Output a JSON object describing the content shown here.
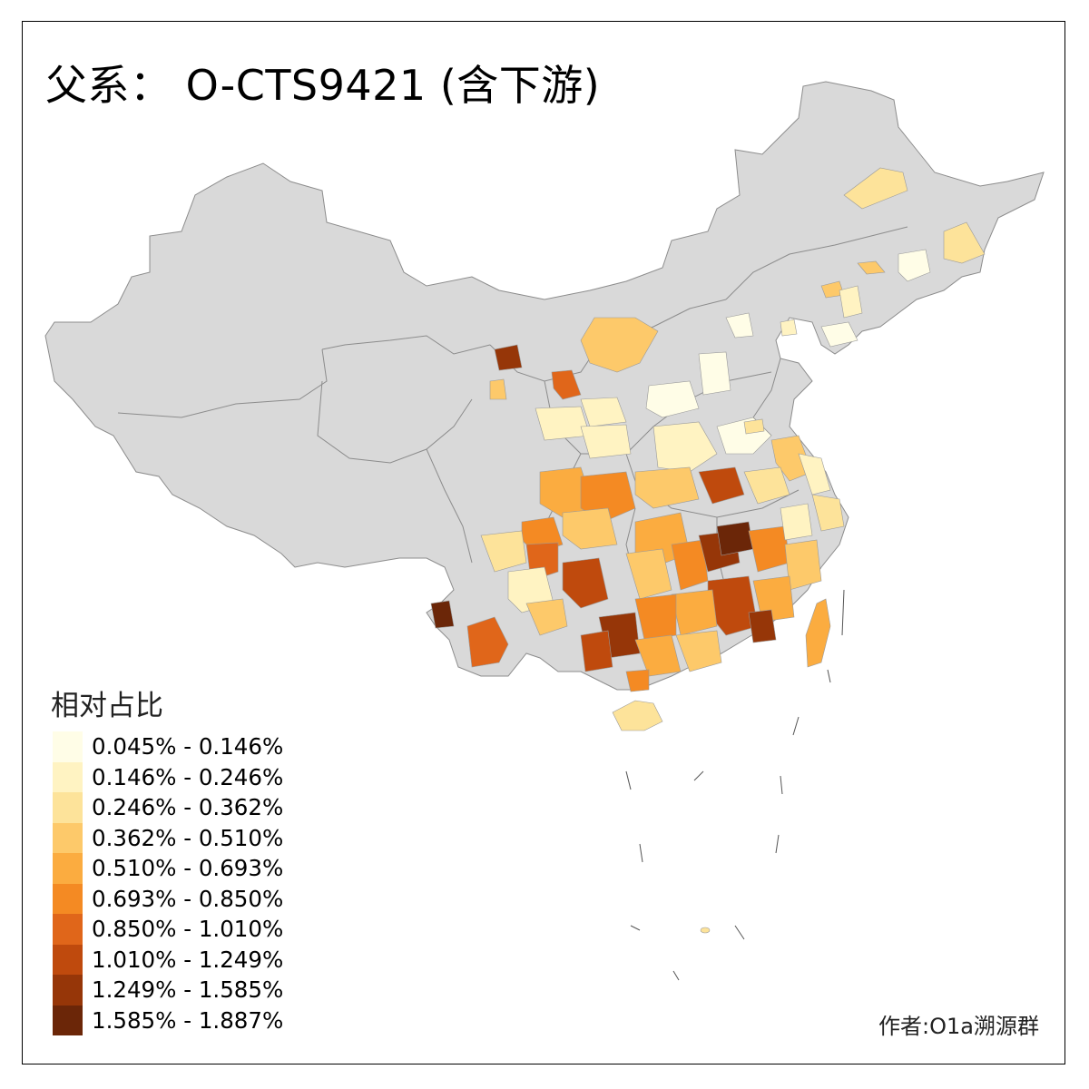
{
  "title": "父系： O-CTS9421 (含下游)",
  "legend": {
    "title": "相对占比",
    "items": [
      {
        "label": "0.045% - 0.146%",
        "color": "#fffde7"
      },
      {
        "label": "0.146% - 0.246%",
        "color": "#fff3c2"
      },
      {
        "label": "0.246% - 0.362%",
        "color": "#fde39a"
      },
      {
        "label": "0.362% - 0.510%",
        "color": "#fdc96a"
      },
      {
        "label": "0.510% - 0.693%",
        "color": "#fbac40"
      },
      {
        "label": "0.693% - 0.850%",
        "color": "#f48a23"
      },
      {
        "label": "0.850% - 1.010%",
        "color": "#e0661a"
      },
      {
        "label": "1.010% - 1.249%",
        "color": "#bf4a0d"
      },
      {
        "label": "1.249% - 1.585%",
        "color": "#963608"
      },
      {
        "label": "1.585% - 1.887%",
        "color": "#6b2608"
      }
    ]
  },
  "author": "作者:O1a溯源群",
  "colors": {
    "base_land": "#d9d9d9",
    "border": "#8c8c8c",
    "frame": "#000000",
    "no_data": "#d9d9d9"
  }
}
